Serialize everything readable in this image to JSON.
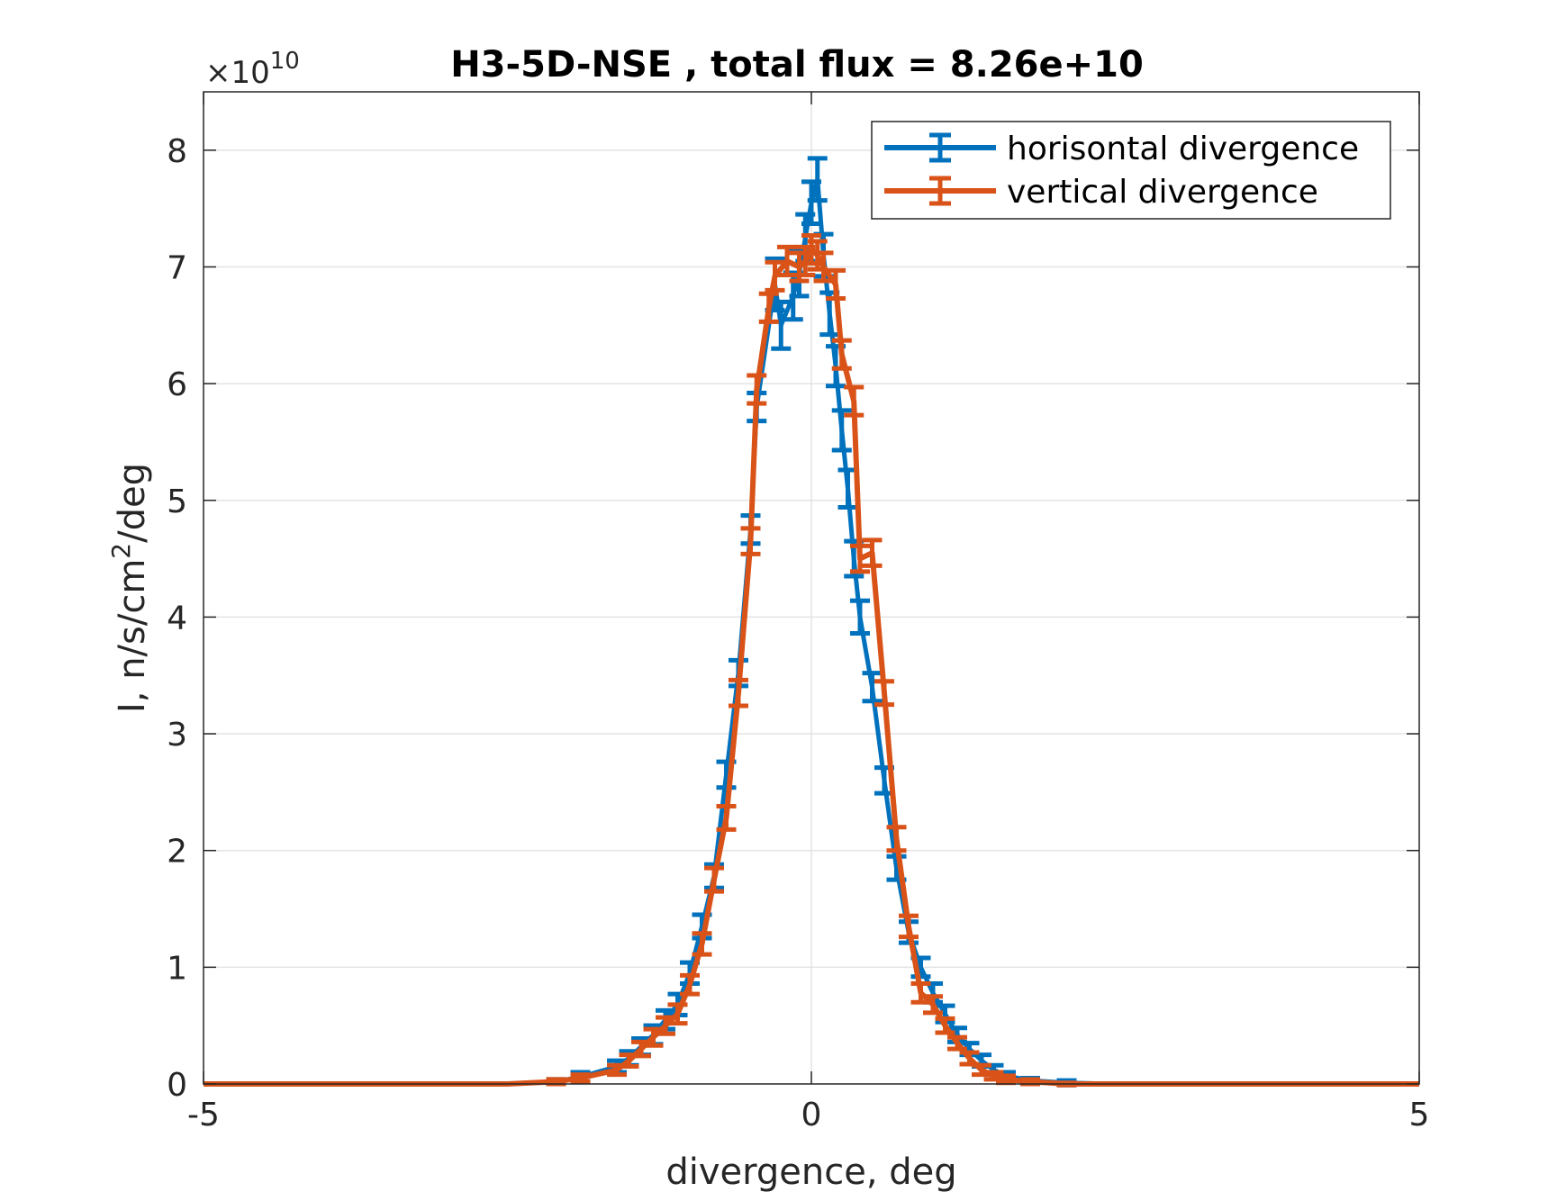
{
  "chart_data": {
    "type": "line",
    "title": "H3-5D-NSE , total flux =  8.26e+10",
    "xlabel": "divergence, deg",
    "ylabel_parts": {
      "main": "I, n/s/cm",
      "sup": "2",
      "tail": "/deg"
    },
    "y_exponent": {
      "times": "×10",
      "power": "10"
    },
    "xlim": [
      -5,
      5
    ],
    "ylim": [
      0,
      8.5
    ],
    "x_ticks": [
      -5,
      0,
      5
    ],
    "x_tick_labels": [
      "-5",
      "0",
      "5"
    ],
    "y_ticks": [
      0,
      1,
      2,
      3,
      4,
      5,
      6,
      7,
      8
    ],
    "y_tick_labels": [
      "0",
      "1",
      "2",
      "3",
      "4",
      "5",
      "6",
      "7",
      "8"
    ],
    "grid": true,
    "legend_position": "top-right",
    "series": [
      {
        "name": "horisontal divergence",
        "color": "#0072BD",
        "x": [
          -5.0,
          -2.5,
          -2.1,
          -1.9,
          -1.6,
          -1.5,
          -1.4,
          -1.3,
          -1.2,
          -1.1,
          -1.0,
          -0.9,
          -0.8,
          -0.7,
          -0.6,
          -0.5,
          -0.45,
          -0.3,
          -0.25,
          -0.15,
          -0.1,
          -0.05,
          0.0,
          0.05,
          0.1,
          0.15,
          0.2,
          0.25,
          0.3,
          0.35,
          0.4,
          0.5,
          0.6,
          0.7,
          0.8,
          0.9,
          1.0,
          1.1,
          1.2,
          1.3,
          1.4,
          1.5,
          1.6,
          1.8,
          2.1,
          2.5,
          5.0
        ],
        "values": [
          0.0,
          0.0,
          0.02,
          0.06,
          0.15,
          0.22,
          0.32,
          0.42,
          0.55,
          0.68,
          0.95,
          1.35,
          1.78,
          2.65,
          3.52,
          4.75,
          5.8,
          6.85,
          6.5,
          6.75,
          6.95,
          7.25,
          7.55,
          7.75,
          7.1,
          6.6,
          6.15,
          5.6,
          5.1,
          4.5,
          4.0,
          3.4,
          2.6,
          1.85,
          1.3,
          1.0,
          0.78,
          0.6,
          0.42,
          0.3,
          0.2,
          0.12,
          0.07,
          0.03,
          0.01,
          0.0,
          0.0
        ],
        "errors": [
          0.0,
          0.0,
          0.02,
          0.04,
          0.05,
          0.06,
          0.07,
          0.08,
          0.08,
          0.09,
          0.09,
          0.1,
          0.1,
          0.11,
          0.11,
          0.12,
          0.12,
          0.22,
          0.2,
          0.2,
          0.2,
          0.2,
          0.18,
          0.18,
          0.18,
          0.18,
          0.17,
          0.17,
          0.16,
          0.15,
          0.14,
          0.12,
          0.11,
          0.1,
          0.09,
          0.08,
          0.08,
          0.07,
          0.06,
          0.05,
          0.05,
          0.04,
          0.03,
          0.02,
          0.02,
          0.0,
          0.0
        ]
      },
      {
        "name": "vertical divergence",
        "color": "#D95319",
        "x": [
          -5.0,
          -2.5,
          -2.1,
          -1.9,
          -1.6,
          -1.5,
          -1.4,
          -1.3,
          -1.2,
          -1.1,
          -1.0,
          -0.9,
          -0.8,
          -0.7,
          -0.6,
          -0.5,
          -0.45,
          -0.35,
          -0.3,
          -0.2,
          -0.1,
          -0.05,
          0.0,
          0.05,
          0.1,
          0.2,
          0.25,
          0.35,
          0.4,
          0.5,
          0.6,
          0.7,
          0.8,
          0.9,
          1.0,
          1.1,
          1.2,
          1.3,
          1.4,
          1.5,
          1.6,
          1.8,
          2.1,
          2.5,
          5.0
        ],
        "values": [
          0.0,
          0.0,
          0.02,
          0.05,
          0.12,
          0.2,
          0.3,
          0.4,
          0.5,
          0.6,
          0.85,
          1.2,
          1.75,
          2.28,
          3.35,
          4.65,
          5.95,
          6.65,
          6.92,
          7.05,
          7.0,
          7.05,
          7.15,
          7.1,
          7.0,
          6.85,
          6.25,
          5.85,
          4.5,
          4.55,
          3.35,
          2.1,
          1.35,
          0.78,
          0.68,
          0.5,
          0.35,
          0.22,
          0.12,
          0.07,
          0.04,
          0.02,
          0.0,
          0.0,
          0.0
        ],
        "errors": [
          0.0,
          0.0,
          0.02,
          0.03,
          0.04,
          0.05,
          0.06,
          0.07,
          0.07,
          0.08,
          0.08,
          0.09,
          0.1,
          0.1,
          0.11,
          0.11,
          0.12,
          0.12,
          0.12,
          0.12,
          0.12,
          0.12,
          0.12,
          0.12,
          0.12,
          0.12,
          0.12,
          0.12,
          0.11,
          0.11,
          0.1,
          0.1,
          0.09,
          0.08,
          0.07,
          0.06,
          0.05,
          0.05,
          0.04,
          0.03,
          0.03,
          0.02,
          0.01,
          0.0,
          0.0
        ]
      }
    ]
  }
}
